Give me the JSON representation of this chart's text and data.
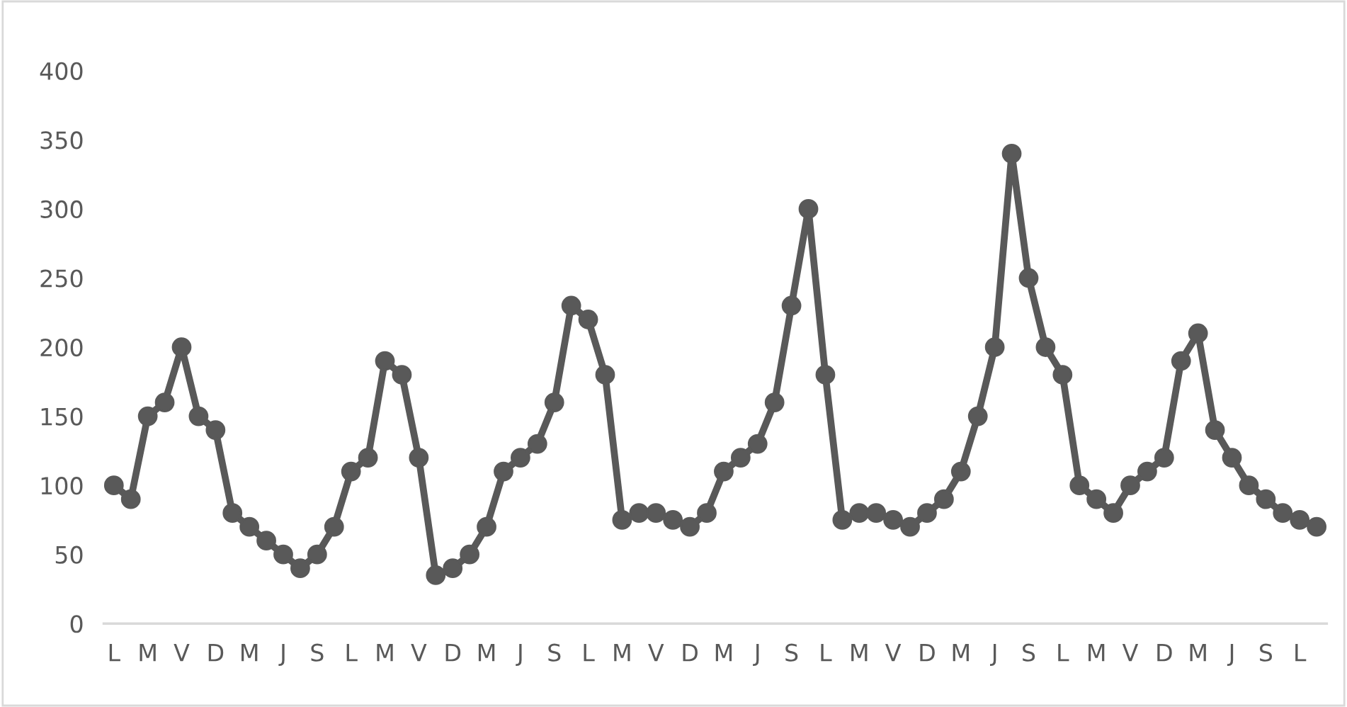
{
  "chart_data": {
    "type": "line",
    "categories": [
      "L",
      null,
      "M",
      null,
      "V",
      null,
      "D",
      null,
      "M",
      null,
      "J",
      null,
      "S",
      null,
      "L",
      null,
      "M",
      null,
      "V",
      null,
      "D",
      null,
      "M",
      null,
      "J",
      null,
      "S",
      null,
      "L",
      null,
      "M",
      null,
      "V",
      null,
      "D",
      null,
      "M",
      null,
      "J",
      null,
      "S",
      null,
      "L",
      null,
      "M",
      null,
      "V",
      null,
      "D",
      null,
      "M",
      null,
      "J",
      null,
      "S",
      null,
      "L",
      null,
      "M",
      null,
      "V",
      null,
      "D",
      null,
      "M",
      null,
      "J",
      null,
      "S",
      null,
      "L",
      null
    ],
    "series": [
      {
        "color": "#595959",
        "values": [
          100,
          90,
          150,
          160,
          200,
          150,
          140,
          80,
          70,
          60,
          50,
          40,
          50,
          70,
          110,
          120,
          190,
          180,
          120,
          35,
          40,
          50,
          70,
          110,
          120,
          130,
          160,
          230,
          220,
          180,
          75,
          80,
          80,
          75,
          70,
          80,
          110,
          120,
          130,
          160,
          230,
          300,
          180,
          75,
          80,
          80,
          75,
          70,
          80,
          90,
          110,
          150,
          200,
          340,
          250,
          200,
          180,
          100,
          90,
          80,
          100,
          110,
          120,
          190,
          210,
          140,
          120,
          100,
          90,
          80,
          75,
          70
        ]
      }
    ],
    "ylim": [
      0,
      400
    ],
    "yticks": [
      0,
      50,
      100,
      150,
      200,
      250,
      300,
      350,
      400
    ],
    "grid": false,
    "marker": "circle",
    "line_style": "solid"
  }
}
